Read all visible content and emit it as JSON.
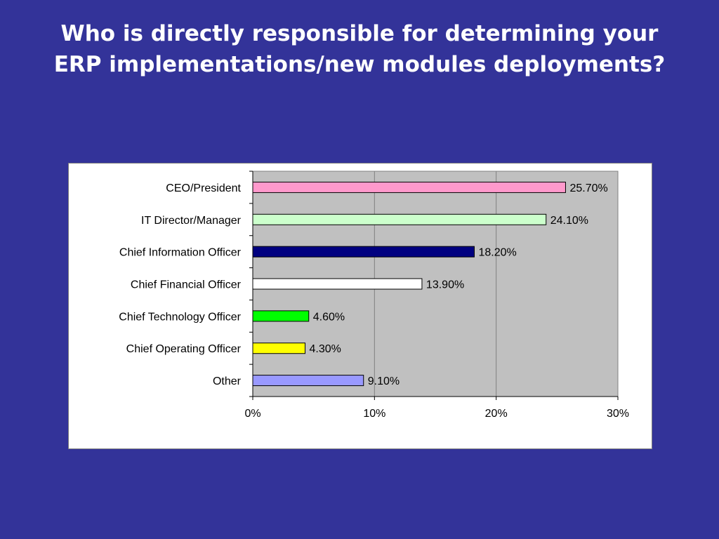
{
  "slide": {
    "title": "Who is directly responsible for determining your ERP implementations/new modules deployments?"
  },
  "chart_data": {
    "type": "bar",
    "orientation": "horizontal",
    "title": "",
    "xlabel": "",
    "ylabel": "",
    "categories": [
      "CEO/President",
      "IT Director/Manager",
      "Chief Information Officer",
      "Chief Financial Officer",
      "Chief Technology Officer",
      "Chief Operating Officer",
      "Other"
    ],
    "values": [
      25.7,
      24.1,
      18.2,
      13.9,
      4.6,
      4.3,
      9.1
    ],
    "data_labels": [
      "25.70%",
      "24.10%",
      "18.20%",
      "13.90%",
      "4.60%",
      "4.30%",
      "9.10%"
    ],
    "bar_colors": [
      "#ff99cc",
      "#ccffcc",
      "#000080",
      "#ffffff",
      "#00ff00",
      "#ffff00",
      "#9999ff"
    ],
    "xlim": [
      0,
      30
    ],
    "x_ticks": [
      0,
      10,
      20,
      30
    ],
    "x_tick_labels": [
      "0%",
      "10%",
      "20%",
      "30%"
    ],
    "grid": true,
    "plot_background": "#c0c0c0",
    "gridline_color": "#808080",
    "legend": "none"
  }
}
